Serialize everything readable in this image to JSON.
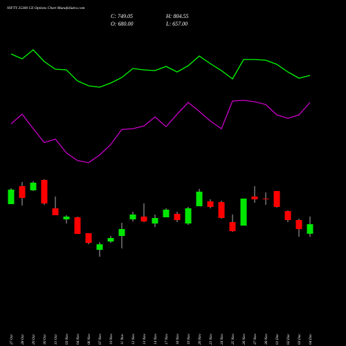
{
  "header": {
    "title": "NIFTY 25300 CE Options Chart MunafaSutra.com",
    "close": "C: 749.05",
    "high": "H: 804.55",
    "open": "O: 680.00",
    "low": "L: 657.00"
  },
  "chart_data": {
    "type": "candlestick",
    "categories": [
      "27 Oct",
      "28 Oct",
      "29 Oct",
      "30 Oct",
      "31 Oct",
      "03 Nov",
      "04 Nov",
      "06 Nov",
      "07 Nov",
      "10 Nov",
      "11 Nov",
      "12 Nov",
      "13 Nov",
      "14 Nov",
      "17 Nov",
      "18 Nov",
      "19 Nov",
      "20 Nov",
      "21 Nov",
      "24 Nov",
      "25 Nov",
      "26 Nov",
      "27 Nov",
      "28 Nov",
      "01 Dec",
      "02 Dec",
      "03 Dec",
      "04 Dec"
    ],
    "open": [
      894,
      1024,
      994,
      1069,
      864,
      784,
      799,
      684,
      564,
      624,
      664,
      784,
      804,
      754,
      799,
      824,
      754,
      879,
      914,
      909,
      764,
      739,
      949,
      934,
      989,
      844,
      779,
      680
    ],
    "high": [
      1009,
      1054,
      1059,
      1074,
      949,
      814,
      804,
      684,
      619,
      664,
      759,
      839,
      899,
      819,
      864,
      839,
      874,
      1004,
      929,
      919,
      819,
      934,
      1024,
      979,
      989,
      849,
      789,
      804.55
    ],
    "low": [
      894,
      884,
      989,
      889,
      814,
      754,
      679,
      604,
      514,
      614,
      574,
      769,
      764,
      729,
      799,
      764,
      744,
      879,
      864,
      789,
      694,
      739,
      904,
      889,
      869,
      764,
      659,
      657
    ],
    "close": [
      999,
      939,
      1049,
      899,
      814,
      804,
      679,
      614,
      604,
      649,
      714,
      819,
      769,
      794,
      854,
      779,
      864,
      984,
      874,
      794,
      699,
      934,
      929,
      929,
      874,
      779,
      714,
      749.05
    ],
    "up_color": "#00e600",
    "down_color": "#ff0000",
    "wick_color": "#dddddd",
    "ylim": [
      -131,
      2369
    ],
    "lines": [
      {
        "color": "#00ff00",
        "values": [
          422,
          415,
          428,
          411,
          400,
          399,
          383,
          376,
          374,
          380,
          388,
          401,
          399,
          398,
          404,
          396,
          405,
          419,
          408,
          398,
          386,
          414,
          414,
          413,
          407,
          396,
          387,
          391
        ]
      },
      {
        "color": "#cc00cc",
        "values": [
          321,
          335,
          314,
          294,
          299,
          279,
          268,
          265,
          276,
          291,
          313,
          314,
          318,
          331,
          317,
          335,
          352,
          339,
          325,
          314,
          354,
          355,
          353,
          349,
          334,
          329,
          334,
          352
        ]
      }
    ],
    "y2lim": [
      0,
      500
    ]
  }
}
